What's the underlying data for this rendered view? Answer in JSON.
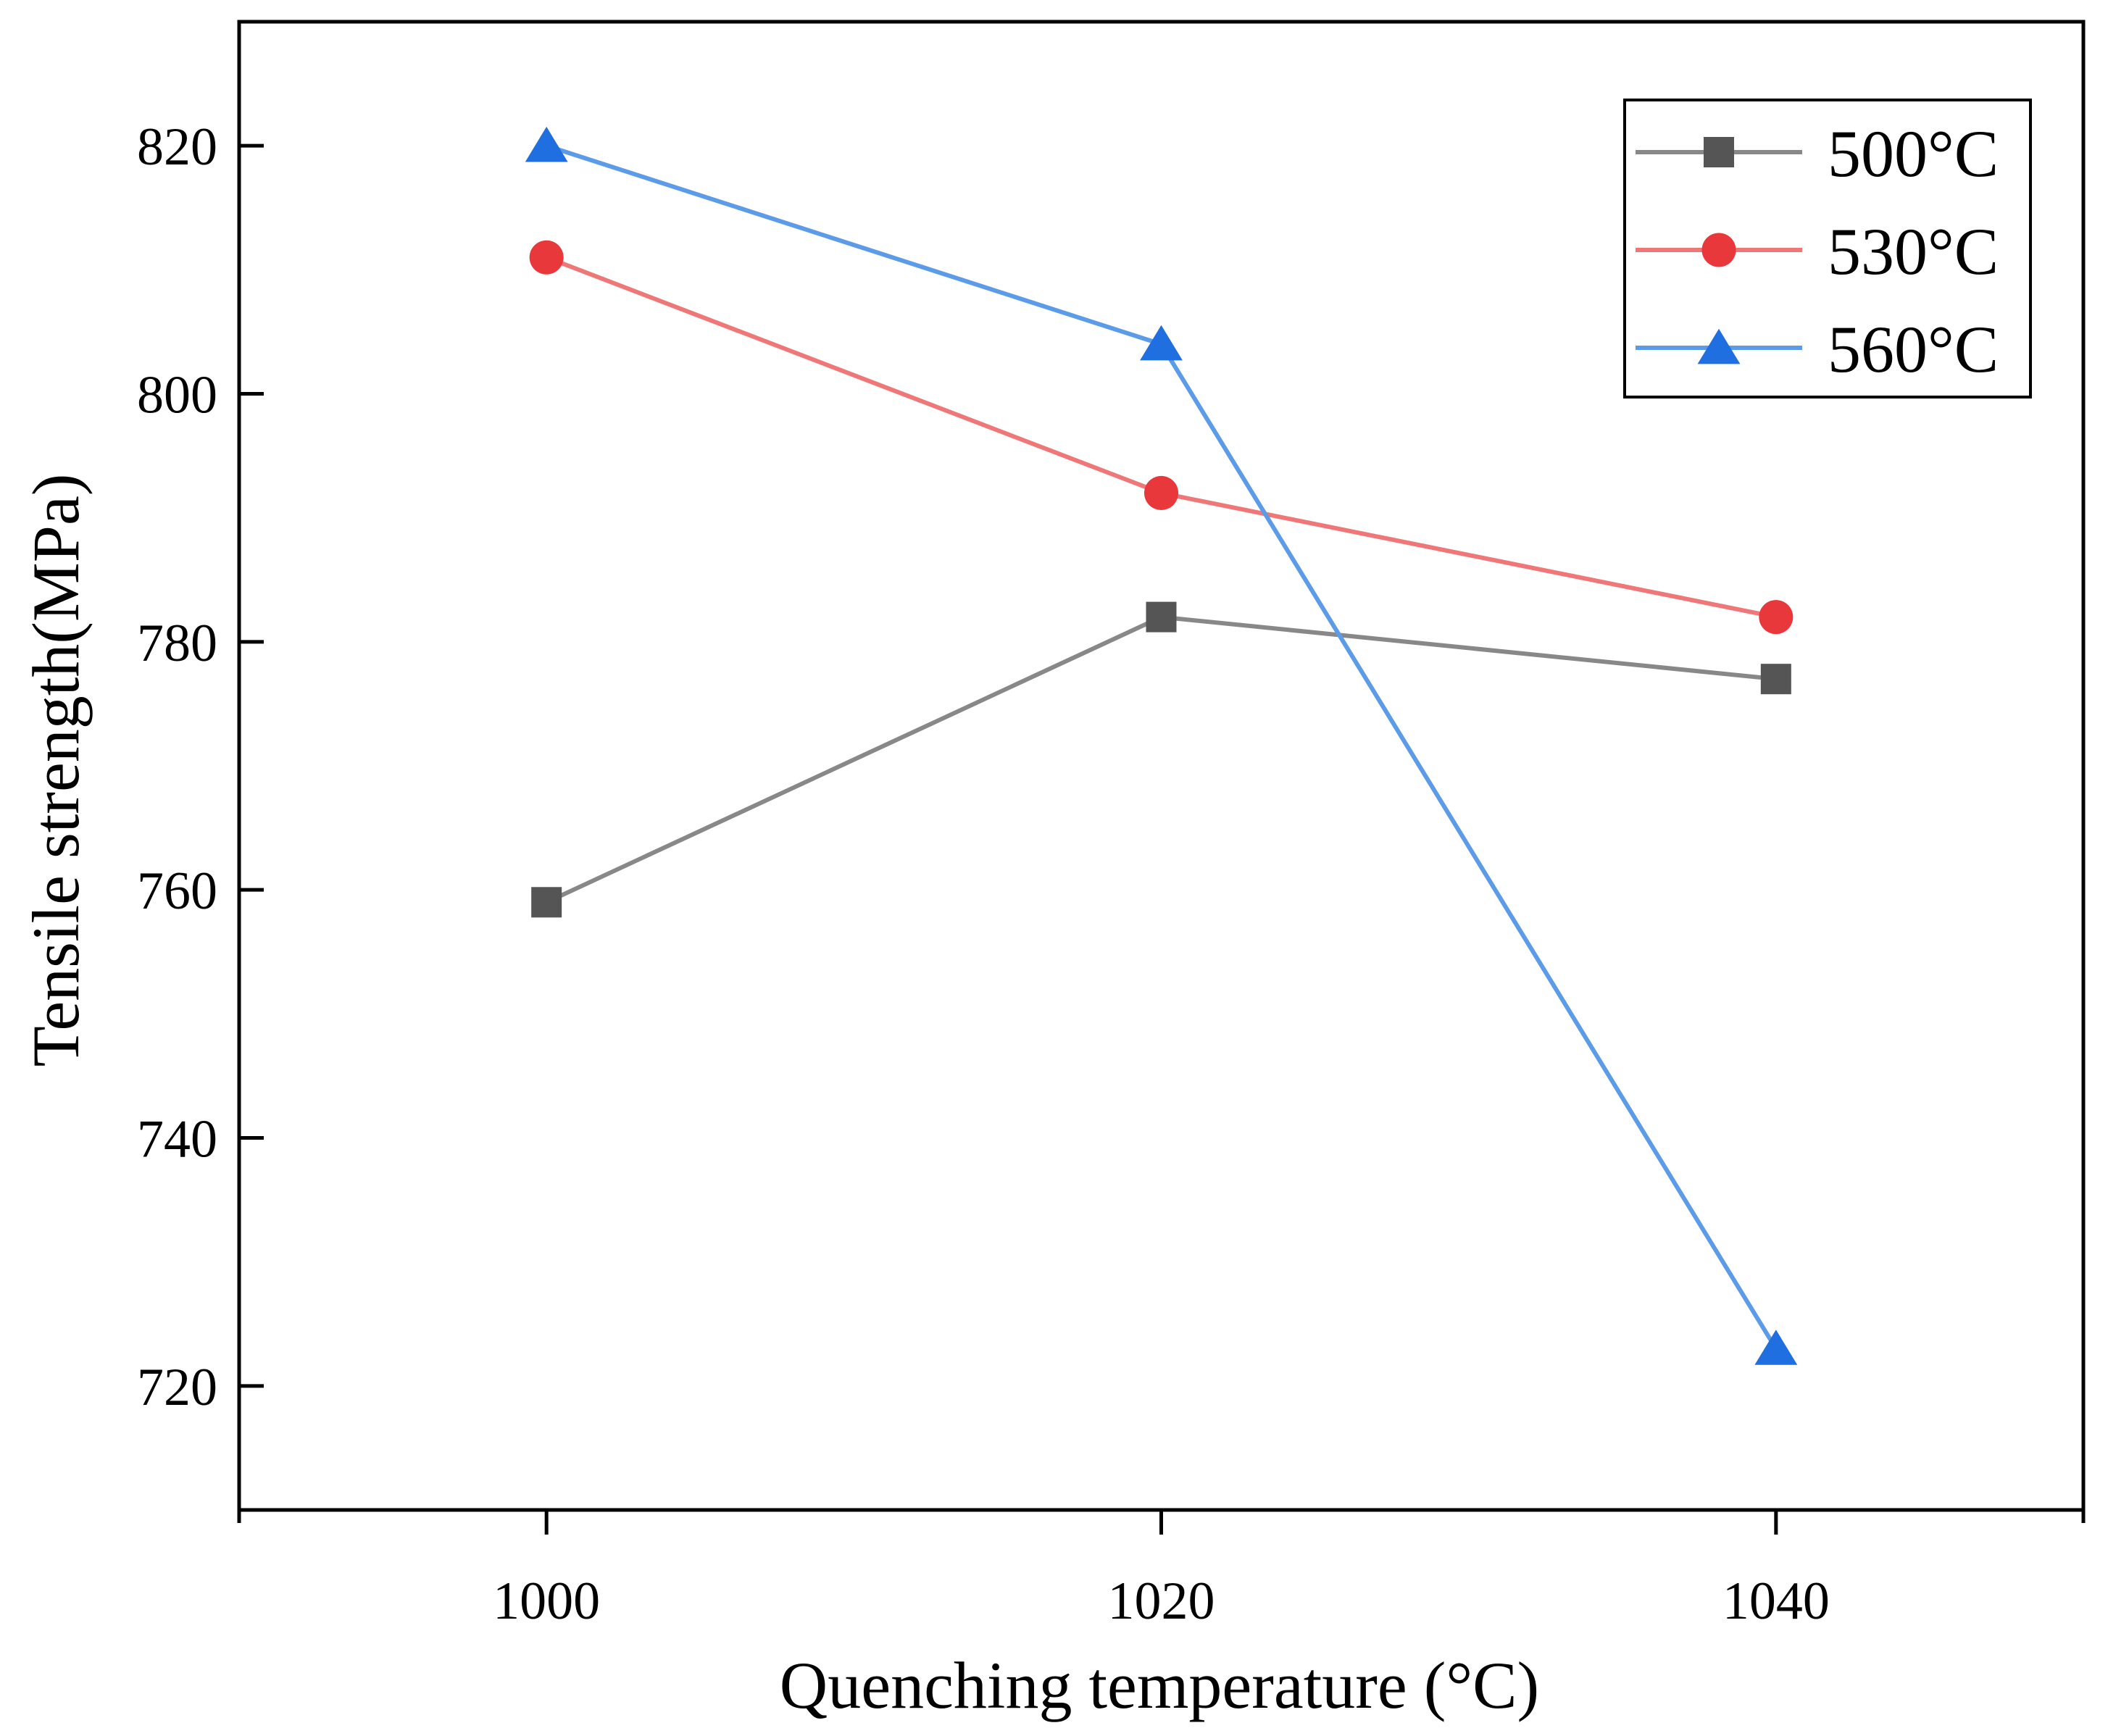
{
  "chart_data": {
    "type": "line",
    "title": "",
    "xlabel": "Quenching temperature (°C)",
    "ylabel": "Tensile strength(MPa)",
    "x": [
      1000,
      1020,
      1040
    ],
    "x_tick_labels": [
      "1000",
      "1020",
      "1040"
    ],
    "y_ticks": [
      720,
      740,
      760,
      780,
      800,
      820
    ],
    "y_tick_labels": [
      "720",
      "740",
      "760",
      "780",
      "800",
      "820"
    ],
    "xlim": [
      990,
      1050
    ],
    "ylim": [
      710,
      830
    ],
    "grid": false,
    "legend_position": "top-right",
    "series": [
      {
        "name": "500°C",
        "marker": "square",
        "color": "#555555",
        "line_color": "#888888",
        "values": [
          759,
          782,
          777
        ]
      },
      {
        "name": "530°C",
        "marker": "circle",
        "color": "#e8383b",
        "line_color": "#ef7777",
        "values": [
          811,
          792,
          782
        ]
      },
      {
        "name": "560°C",
        "marker": "triangle",
        "color": "#1f6fe0",
        "line_color": "#5b9be8",
        "values": [
          820,
          804,
          723
        ]
      }
    ]
  }
}
